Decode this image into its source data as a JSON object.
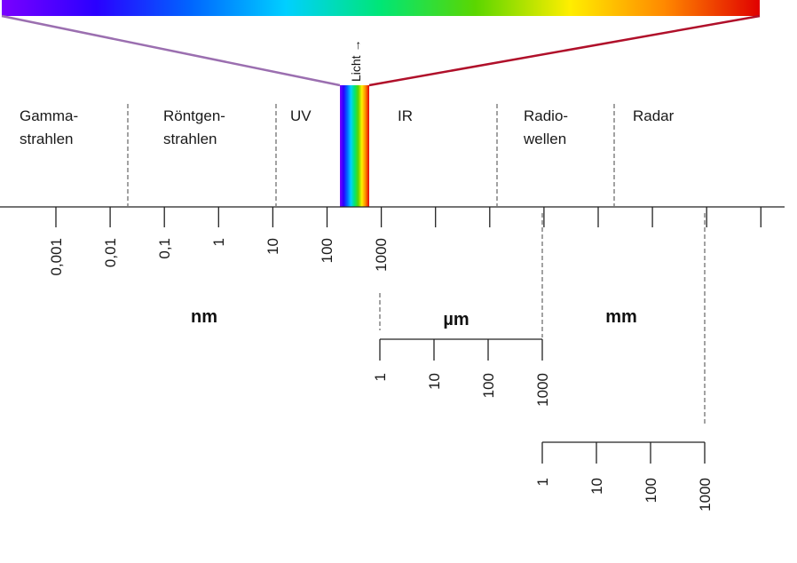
{
  "light_label": "Licht →",
  "regions": [
    {
      "key": "gamma",
      "lines": [
        "Gamma-",
        "strahlen"
      ]
    },
    {
      "key": "xray",
      "lines": [
        "Röntgen-",
        "strahlen"
      ]
    },
    {
      "key": "uv",
      "lines": [
        "UV"
      ]
    },
    {
      "key": "ir",
      "lines": [
        "IR"
      ]
    },
    {
      "key": "radio",
      "lines": [
        "Radio-",
        "wellen"
      ]
    },
    {
      "key": "radar",
      "lines": [
        "Radar"
      ]
    }
  ],
  "scales": {
    "nm": {
      "unit": "nm",
      "ticks": [
        "0,001",
        "0,01",
        "0,1",
        "1",
        "10",
        "100",
        "1000"
      ]
    },
    "um": {
      "unit": "µm",
      "ticks": [
        "1",
        "10",
        "100",
        "1000"
      ]
    },
    "mm": {
      "unit": "mm",
      "ticks": [
        "1",
        "10",
        "100",
        "1000"
      ]
    }
  },
  "colors": {
    "spectrum": [
      "#7a00ff",
      "#2a00ff",
      "#0066ff",
      "#00d0ff",
      "#00e676",
      "#5bd600",
      "#ffee00",
      "#ff8800",
      "#e00000"
    ],
    "violet_line": "#9b6fb0",
    "red_line": "#b0102a"
  }
}
